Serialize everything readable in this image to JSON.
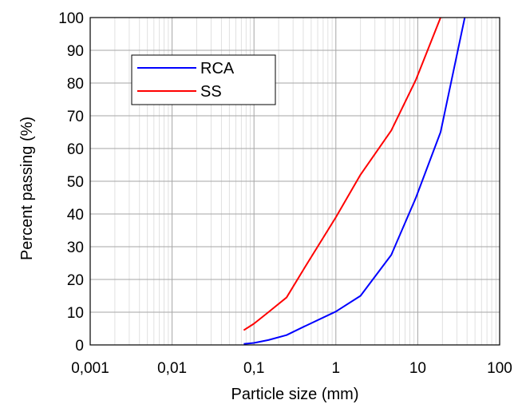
{
  "chart_data": {
    "type": "line",
    "title": "",
    "xlabel": "Particle size (mm)",
    "ylabel": "Percent passing (%)",
    "x_scale": "log",
    "xlim": [
      0.001,
      100
    ],
    "ylim": [
      0,
      100
    ],
    "x_ticks": [
      "0,001",
      "0,01",
      "0,1",
      "1",
      "10",
      "100"
    ],
    "y_ticks": [
      "0",
      "10",
      "20",
      "30",
      "40",
      "50",
      "60",
      "70",
      "80",
      "90",
      "100"
    ],
    "grid": true,
    "legend": {
      "position": "upper-left",
      "entries": [
        "RCA",
        "SS"
      ]
    },
    "series": [
      {
        "name": "RCA",
        "color": "#0000ff",
        "x": [
          0.075,
          0.1,
          0.15,
          0.25,
          0.425,
          1.0,
          2.0,
          4.75,
          9.5,
          19.0,
          37.5
        ],
        "y": [
          0.3,
          0.6,
          1.5,
          3.0,
          5.8,
          10.2,
          15.0,
          27.5,
          45.0,
          65.0,
          100.0
        ]
      },
      {
        "name": "SS",
        "color": "#ff0000",
        "x": [
          0.075,
          0.1,
          0.15,
          0.25,
          0.425,
          1.0,
          2.0,
          4.75,
          9.5,
          19.0
        ],
        "y": [
          4.5,
          6.5,
          10.0,
          14.5,
          24.0,
          39.0,
          52.0,
          65.5,
          81.0,
          100.0
        ]
      }
    ]
  }
}
